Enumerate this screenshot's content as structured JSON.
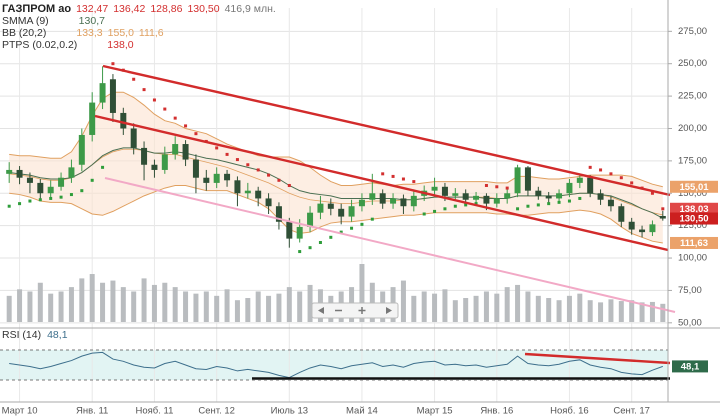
{
  "chart_data": [
    {
      "type": "candlestick",
      "title": "ГАЗПРОМ ао",
      "ohlc_readouts": [
        {
          "value": 132.47,
          "label": "132,47"
        },
        {
          "value": 136.42,
          "label": "136,42"
        },
        {
          "value": 128.86,
          "label": "128,86"
        },
        {
          "value": 130.5,
          "label": "130,50"
        }
      ],
      "volume_readout": {
        "value": 416.9,
        "label": "416,9 млн."
      },
      "categories": [
        null,
        "Март 10",
        null,
        null,
        null,
        null,
        null,
        null,
        "Янв. 11",
        null,
        null,
        null,
        null,
        null,
        "Нояб. 11",
        null,
        null,
        null,
        null,
        null,
        "Сент. 12",
        null,
        null,
        null,
        null,
        null,
        null,
        "Июль 13",
        null,
        null,
        null,
        null,
        null,
        null,
        "Май 14",
        null,
        null,
        null,
        null,
        null,
        null,
        "Март 15",
        null,
        null,
        null,
        null,
        null,
        "Янв. 16",
        null,
        null,
        null,
        null,
        null,
        null,
        "Нояб. 16",
        null,
        null,
        null,
        null,
        null,
        "Сент. 17",
        null,
        null,
        null
      ],
      "open": [
        165,
        168,
        162,
        158,
        150,
        155,
        162,
        172,
        195,
        220,
        238,
        212,
        200,
        185,
        172,
        168,
        180,
        188,
        176,
        162,
        158,
        165,
        160,
        150,
        152,
        146,
        140,
        128,
        115,
        124,
        135,
        142,
        138,
        132,
        140,
        145,
        150,
        142,
        146,
        140,
        148,
        152,
        155,
        148,
        150,
        145,
        148,
        142,
        146,
        150,
        170,
        152,
        148,
        146,
        150,
        158,
        162,
        150,
        145,
        140,
        128,
        122,
        120,
        132.47
      ],
      "high": [
        174,
        171,
        166,
        161,
        160,
        166,
        176,
        200,
        228,
        248,
        242,
        216,
        204,
        190,
        176,
        186,
        194,
        191,
        180,
        168,
        170,
        168,
        163,
        158,
        155,
        150,
        143,
        131,
        130,
        140,
        148,
        146,
        142,
        145,
        150,
        165,
        153,
        150,
        149,
        153,
        156,
        162,
        158,
        154,
        153,
        151,
        150,
        150,
        154,
        172,
        171,
        155,
        151,
        153,
        161,
        165,
        164,
        153,
        148,
        142,
        131,
        125,
        129,
        136.42
      ],
      "low": [
        158,
        157,
        150,
        144,
        146,
        152,
        158,
        167,
        190,
        215,
        205,
        195,
        180,
        160,
        162,
        165,
        176,
        171,
        150,
        152,
        154,
        155,
        140,
        146,
        140,
        134,
        122,
        108,
        112,
        120,
        130,
        133,
        126,
        128,
        136,
        141,
        138,
        138,
        134,
        136,
        144,
        147,
        144,
        145,
        141,
        142,
        137,
        139,
        142,
        147,
        148,
        145,
        142,
        143,
        147,
        154,
        147,
        141,
        136,
        124,
        118,
        116,
        117,
        128.86
      ],
      "close": [
        168,
        162,
        158,
        150,
        155,
        162,
        170,
        195,
        220,
        235,
        212,
        200,
        185,
        172,
        168,
        180,
        188,
        176,
        162,
        158,
        165,
        160,
        150,
        152,
        146,
        140,
        128,
        115,
        124,
        135,
        142,
        138,
        132,
        140,
        145,
        150,
        142,
        146,
        140,
        148,
        152,
        155,
        148,
        150,
        145,
        148,
        142,
        146,
        150,
        170,
        152,
        148,
        146,
        150,
        158,
        162,
        150,
        145,
        140,
        128,
        122,
        120,
        126,
        130.5
      ],
      "volume": [
        600,
        750,
        700,
        900,
        650,
        700,
        800,
        1000,
        1100,
        900,
        950,
        800,
        700,
        1000,
        850,
        900,
        800,
        700,
        650,
        700,
        600,
        750,
        500,
        550,
        700,
        600,
        650,
        800,
        700,
        850,
        750,
        600,
        700,
        800,
        1330,
        900,
        700,
        800,
        950,
        600,
        700,
        650,
        750,
        500,
        550,
        600,
        700,
        650,
        800,
        850,
        700,
        600,
        550,
        500,
        600,
        650,
        500,
        450,
        520,
        480,
        500,
        450,
        460,
        416.9
      ],
      "up_color": "#3d9a48",
      "down_color": "#2f4f36",
      "volume_color": "#b9bcbf",
      "ylim": [
        46,
        293
      ],
      "yticks": [
        {
          "value": 50,
          "label": "50,00"
        },
        {
          "value": 75,
          "label": "75,00"
        },
        {
          "value": 100,
          "label": "100,00"
        },
        {
          "value": 125,
          "label": "125,00"
        },
        {
          "value": 150,
          "label": "150,00"
        },
        {
          "value": 175,
          "label": "175,00"
        },
        {
          "value": 200,
          "label": "200,00"
        },
        {
          "value": 225,
          "label": "225,00"
        },
        {
          "value": 250,
          "label": "250,00"
        },
        {
          "value": 275,
          "label": "275,00"
        }
      ],
      "grid": true,
      "indicators": [
        {
          "name": "SMMA (9)",
          "color": "#4a6f52",
          "readouts": [
            {
              "value": 130.7,
              "label": "130,7"
            }
          ],
          "values": [
            166,
            165,
            164,
            162,
            161,
            161,
            162,
            166,
            172,
            179,
            183,
            185,
            185,
            183,
            181,
            181,
            182,
            181,
            179,
            177,
            176,
            174,
            172,
            170,
            168,
            165,
            161,
            156,
            152,
            150,
            149,
            148,
            146,
            146,
            146,
            146,
            146,
            146,
            145,
            145,
            146,
            147,
            147,
            147,
            147,
            147,
            146,
            146,
            146,
            148,
            148,
            148,
            148,
            148,
            149,
            150,
            150,
            149,
            148,
            145,
            142,
            138,
            135,
            130.7
          ]
        },
        {
          "name": "BB (20,2)",
          "color": "#e0a060",
          "fill": "#fbe3d0",
          "readouts": [
            {
              "value": 133.3,
              "label": "133,3"
            },
            {
              "value": 155.0,
              "label": "155,0"
            },
            {
              "value": 111.6,
              "label": "111,6"
            }
          ],
          "middle": [
            165,
            164,
            163,
            161,
            160,
            160,
            162,
            166,
            172,
            178,
            182,
            184,
            184,
            183,
            181,
            180,
            180,
            178,
            176,
            174,
            172,
            170,
            167,
            164,
            161,
            158,
            154,
            150,
            147,
            145,
            144,
            143,
            142,
            142,
            143,
            144,
            144,
            144,
            145,
            145,
            146,
            147,
            147,
            147,
            147,
            147,
            147,
            146,
            146,
            148,
            148,
            148,
            148,
            148,
            149,
            150,
            150,
            149,
            147,
            144,
            141,
            138,
            135,
            133.3
          ],
          "upper": [
            180,
            179,
            179,
            178,
            177,
            177,
            182,
            194,
            210,
            223,
            228,
            228,
            224,
            218,
            211,
            206,
            204,
            200,
            198,
            196,
            192,
            188,
            185,
            182,
            179,
            178,
            178,
            178,
            175,
            170,
            164,
            159,
            156,
            156,
            157,
            158,
            157,
            156,
            157,
            157,
            158,
            159,
            159,
            159,
            159,
            159,
            159,
            158,
            158,
            163,
            163,
            162,
            161,
            161,
            162,
            163,
            164,
            164,
            164,
            164,
            163,
            160,
            157,
            155.0
          ],
          "lower": [
            150,
            149,
            147,
            144,
            143,
            143,
            142,
            138,
            134,
            133,
            136,
            140,
            144,
            148,
            151,
            154,
            156,
            156,
            154,
            152,
            152,
            152,
            149,
            146,
            143,
            138,
            130,
            122,
            119,
            120,
            124,
            127,
            128,
            128,
            129,
            130,
            131,
            132,
            133,
            133,
            134,
            135,
            135,
            135,
            135,
            135,
            135,
            134,
            134,
            133,
            133,
            134,
            135,
            135,
            136,
            137,
            136,
            134,
            130,
            124,
            119,
            116,
            113,
            111.6
          ]
        },
        {
          "name": "PTPS (0.02,0.2)",
          "color": "#d32f2f",
          "below_color": "#2e9d3a",
          "readouts": [
            {
              "value": 138.0,
              "label": "138,0"
            }
          ],
          "values": [
            140,
            142,
            144,
            145,
            146,
            147,
            149,
            152,
            160,
            170,
            250,
            245,
            238,
            230,
            222,
            215,
            208,
            202,
            196,
            190,
            185,
            180,
            176,
            172,
            168,
            164,
            160,
            156,
            105,
            108,
            112,
            116,
            120,
            123,
            126,
            130,
            165,
            163,
            161,
            159,
            134,
            136,
            138,
            140,
            141,
            142,
            156,
            155,
            154,
            138,
            140,
            141,
            142,
            143,
            144,
            146,
            170,
            168,
            165,
            162,
            158,
            154,
            150,
            138.0
          ]
        }
      ],
      "badges": [
        {
          "value": 155.01,
          "label": "155,01",
          "color": "#eba26a"
        },
        {
          "value": 138.03,
          "label": "138,03",
          "color": "#e04848"
        },
        {
          "value": 130.5,
          "label": "130,50",
          "color": "#cc1f1f"
        },
        {
          "value": 111.63,
          "label": "111,63",
          "color": "#eba26a"
        }
      ]
    },
    {
      "type": "line",
      "title": "RSI (14)",
      "readout": {
        "value": 48.1,
        "label": "48,1"
      },
      "color": "#3d6f8c",
      "band_color": "#e2f4f3",
      "badge_color": "#2e6b4a",
      "ylim": [
        0,
        100
      ],
      "values": [
        52,
        50,
        48,
        45,
        48,
        52,
        56,
        62,
        66,
        67,
        58,
        55,
        50,
        47,
        46,
        52,
        55,
        50,
        45,
        44,
        48,
        46,
        42,
        44,
        42,
        40,
        36,
        33,
        40,
        46,
        50,
        48,
        45,
        49,
        51,
        53,
        48,
        50,
        47,
        52,
        54,
        55,
        50,
        51,
        49,
        50,
        47,
        49,
        51,
        62,
        52,
        50,
        49,
        51,
        55,
        57,
        50,
        47,
        45,
        40,
        38,
        37,
        43,
        48.1
      ]
    }
  ]
}
